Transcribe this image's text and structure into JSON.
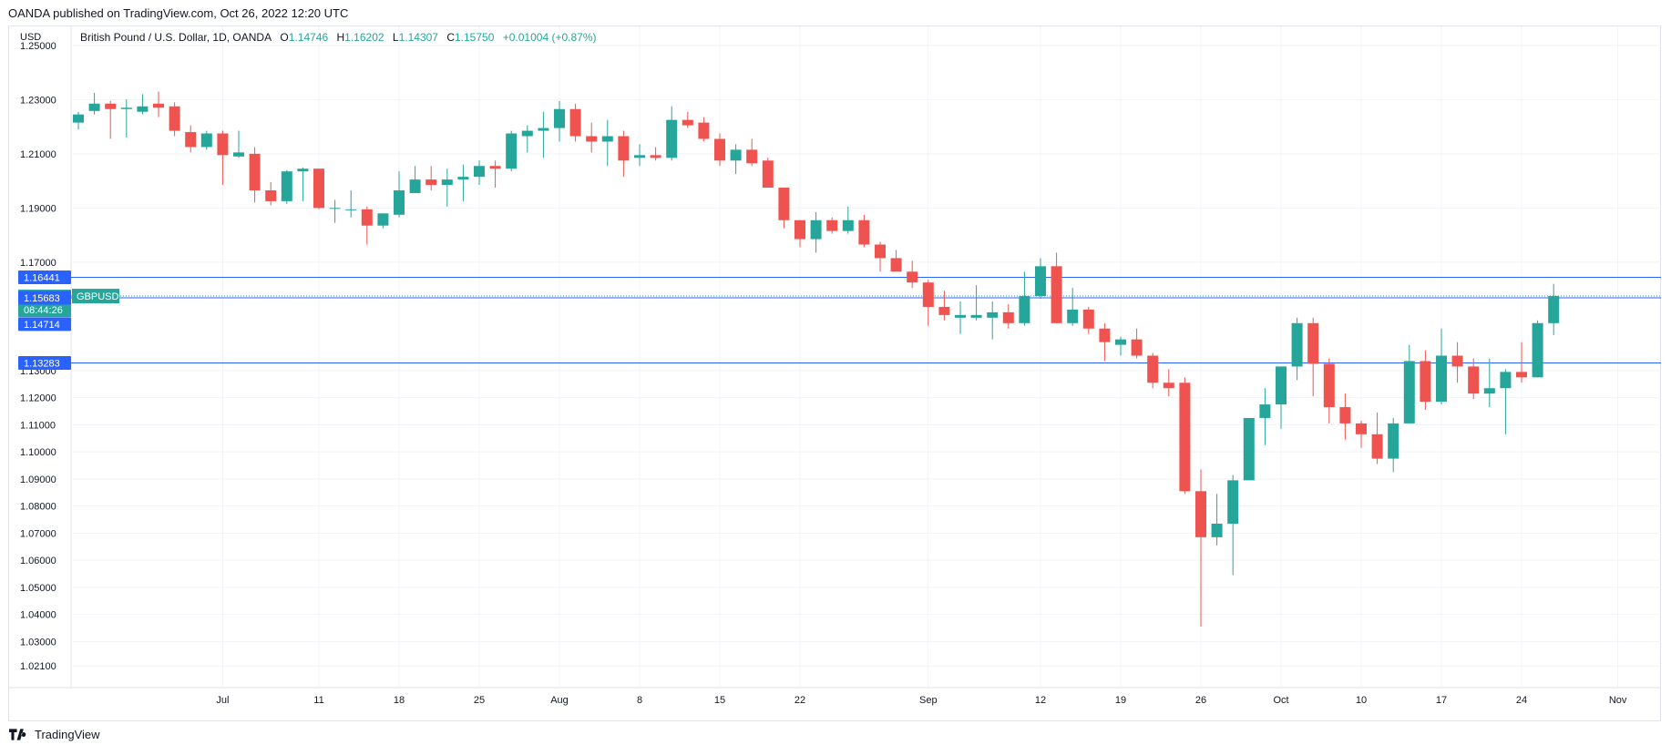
{
  "header": {
    "published": "OANDA published on TradingView.com, Oct 26, 2022 12:20 UTC"
  },
  "axis_currency": "USD",
  "legend": {
    "symbol_name": "British Pound / U.S. Dollar, 1D, OANDA",
    "o_label": "O",
    "o_value": "1.14746",
    "h_label": "H",
    "h_value": "1.16202",
    "l_label": "L",
    "l_value": "1.14307",
    "c_label": "C",
    "c_value": "1.15750",
    "change": "+0.01004 (+0.87%)"
  },
  "footer": {
    "brand": "TradingView"
  },
  "colors": {
    "up": "#26a69a",
    "down": "#ef5350",
    "hline": "#2962ff",
    "grid": "#f0f3fa"
  },
  "chart_data": {
    "type": "candlestick",
    "symbol": "GBPUSD",
    "ylim": [
      1.013,
      1.257
    ],
    "y_ticks": [
      1.25,
      1.23,
      1.21,
      1.19,
      1.17,
      1.13,
      1.12,
      1.11,
      1.1,
      1.09,
      1.08,
      1.07,
      1.06,
      1.05,
      1.04,
      1.03,
      1.021
    ],
    "y_tick_labels": [
      "1.25000",
      "1.23000",
      "1.21000",
      "1.19000",
      "1.17000",
      "1.13000",
      "1.12000",
      "1.11000",
      "1.10000",
      "1.09000",
      "1.08000",
      "1.07000",
      "1.06000",
      "1.05000",
      "1.04000",
      "1.03000",
      "1.02100"
    ],
    "x_tick_labels": [
      {
        "label": "Jul",
        "idx": 9
      },
      {
        "label": "11",
        "idx": 15
      },
      {
        "label": "18",
        "idx": 20
      },
      {
        "label": "25",
        "idx": 25
      },
      {
        "label": "Aug",
        "idx": 30
      },
      {
        "label": "8",
        "idx": 35
      },
      {
        "label": "15",
        "idx": 40
      },
      {
        "label": "22",
        "idx": 45
      },
      {
        "label": "Sep",
        "idx": 53
      },
      {
        "label": "12",
        "idx": 60
      },
      {
        "label": "19",
        "idx": 65
      },
      {
        "label": "26",
        "idx": 70
      },
      {
        "label": "Oct",
        "idx": 75
      },
      {
        "label": "10",
        "idx": 80
      },
      {
        "label": "17",
        "idx": 85
      },
      {
        "label": "24",
        "idx": 90
      },
      {
        "label": "Nov",
        "idx": 96
      }
    ],
    "h_lines": [
      {
        "value": 1.16441,
        "label": "1.16441"
      },
      {
        "value": 1.15683,
        "label": "1.15683"
      },
      {
        "value": 1.13283,
        "label": "1.13283"
      }
    ],
    "price_label": {
      "value": 1.1575,
      "label": "1.15750",
      "countdown": "08:44:26",
      "symbol": "GBPUSD"
    },
    "extra_label": {
      "value": 1.14714,
      "label": "1.14714"
    },
    "candles": [
      {
        "i": 0,
        "o": 1.2215,
        "h": 1.2255,
        "l": 1.219,
        "c": 1.2245
      },
      {
        "i": 1,
        "o": 1.2258,
        "h": 1.2325,
        "l": 1.2245,
        "c": 1.2285
      },
      {
        "i": 2,
        "o": 1.2285,
        "h": 1.2295,
        "l": 1.2155,
        "c": 1.2265
      },
      {
        "i": 3,
        "o": 1.2265,
        "h": 1.23,
        "l": 1.216,
        "c": 1.227
      },
      {
        "i": 4,
        "o": 1.2255,
        "h": 1.232,
        "l": 1.2245,
        "c": 1.2275
      },
      {
        "i": 5,
        "o": 1.2285,
        "h": 1.233,
        "l": 1.2235,
        "c": 1.227
      },
      {
        "i": 6,
        "o": 1.2275,
        "h": 1.229,
        "l": 1.2165,
        "c": 1.2185
      },
      {
        "i": 7,
        "o": 1.218,
        "h": 1.2205,
        "l": 1.2105,
        "c": 1.2125
      },
      {
        "i": 8,
        "o": 1.2125,
        "h": 1.2185,
        "l": 1.2115,
        "c": 1.2175
      },
      {
        "i": 9,
        "o": 1.2175,
        "h": 1.2185,
        "l": 1.1985,
        "c": 1.2095
      },
      {
        "i": 10,
        "o": 1.209,
        "h": 1.2185,
        "l": 1.2085,
        "c": 1.2105
      },
      {
        "i": 11,
        "o": 1.21,
        "h": 1.2125,
        "l": 1.192,
        "c": 1.1965
      },
      {
        "i": 12,
        "o": 1.1965,
        "h": 1.1995,
        "l": 1.191,
        "c": 1.1925
      },
      {
        "i": 13,
        "o": 1.1925,
        "h": 1.204,
        "l": 1.1915,
        "c": 1.2035
      },
      {
        "i": 14,
        "o": 1.2035,
        "h": 1.205,
        "l": 1.1925,
        "c": 1.2045
      },
      {
        "i": 15,
        "o": 1.2045,
        "h": 1.2045,
        "l": 1.1895,
        "c": 1.19
      },
      {
        "i": 16,
        "o": 1.19,
        "h": 1.193,
        "l": 1.1845,
        "c": 1.19
      },
      {
        "i": 17,
        "o": 1.1895,
        "h": 1.1965,
        "l": 1.1865,
        "c": 1.1895
      },
      {
        "i": 18,
        "o": 1.1895,
        "h": 1.1905,
        "l": 1.1765,
        "c": 1.1835
      },
      {
        "i": 19,
        "o": 1.1835,
        "h": 1.188,
        "l": 1.1825,
        "c": 1.188
      },
      {
        "i": 20,
        "o": 1.1875,
        "h": 1.2035,
        "l": 1.1865,
        "c": 1.1965
      },
      {
        "i": 21,
        "o": 1.1955,
        "h": 1.2055,
        "l": 1.1955,
        "c": 1.2005
      },
      {
        "i": 22,
        "o": 1.2005,
        "h": 1.2055,
        "l": 1.1965,
        "c": 1.1985
      },
      {
        "i": 23,
        "o": 1.1985,
        "h": 1.2045,
        "l": 1.1905,
        "c": 1.2005
      },
      {
        "i": 24,
        "o": 1.2005,
        "h": 1.206,
        "l": 1.1925,
        "c": 1.2015
      },
      {
        "i": 25,
        "o": 1.2015,
        "h": 1.2075,
        "l": 1.1985,
        "c": 1.2055
      },
      {
        "i": 26,
        "o": 1.2055,
        "h": 1.2075,
        "l": 1.1975,
        "c": 1.2045
      },
      {
        "i": 27,
        "o": 1.2045,
        "h": 1.2185,
        "l": 1.2035,
        "c": 1.2175
      },
      {
        "i": 28,
        "o": 1.2165,
        "h": 1.2205,
        "l": 1.2105,
        "c": 1.2185
      },
      {
        "i": 29,
        "o": 1.2185,
        "h": 1.2255,
        "l": 1.2085,
        "c": 1.2195
      },
      {
        "i": 30,
        "o": 1.2195,
        "h": 1.2295,
        "l": 1.2145,
        "c": 1.2265
      },
      {
        "i": 31,
        "o": 1.2265,
        "h": 1.2285,
        "l": 1.2145,
        "c": 1.2165
      },
      {
        "i": 32,
        "o": 1.2165,
        "h": 1.2215,
        "l": 1.2105,
        "c": 1.2145
      },
      {
        "i": 33,
        "o": 1.2145,
        "h": 1.2225,
        "l": 1.2055,
        "c": 1.2165
      },
      {
        "i": 34,
        "o": 1.2165,
        "h": 1.2185,
        "l": 1.2015,
        "c": 1.2075
      },
      {
        "i": 35,
        "o": 1.2085,
        "h": 1.2135,
        "l": 1.2055,
        "c": 1.2095
      },
      {
        "i": 36,
        "o": 1.2095,
        "h": 1.2125,
        "l": 1.2075,
        "c": 1.2085
      },
      {
        "i": 37,
        "o": 1.2085,
        "h": 1.2275,
        "l": 1.2075,
        "c": 1.2225
      },
      {
        "i": 38,
        "o": 1.2225,
        "h": 1.2255,
        "l": 1.2195,
        "c": 1.2205
      },
      {
        "i": 39,
        "o": 1.2215,
        "h": 1.2235,
        "l": 1.2145,
        "c": 1.2155
      },
      {
        "i": 40,
        "o": 1.2155,
        "h": 1.2175,
        "l": 1.2055,
        "c": 1.2075
      },
      {
        "i": 41,
        "o": 1.2075,
        "h": 1.2135,
        "l": 1.2025,
        "c": 1.2115
      },
      {
        "i": 42,
        "o": 1.2115,
        "h": 1.2155,
        "l": 1.2055,
        "c": 1.2065
      },
      {
        "i": 43,
        "o": 1.2075,
        "h": 1.2085,
        "l": 1.1975,
        "c": 1.1975
      },
      {
        "i": 44,
        "o": 1.1975,
        "h": 1.1975,
        "l": 1.1825,
        "c": 1.1855
      },
      {
        "i": 45,
        "o": 1.1855,
        "h": 1.1855,
        "l": 1.1755,
        "c": 1.1785
      },
      {
        "i": 46,
        "o": 1.1785,
        "h": 1.1885,
        "l": 1.1735,
        "c": 1.1855
      },
      {
        "i": 47,
        "o": 1.1855,
        "h": 1.1865,
        "l": 1.1805,
        "c": 1.1815
      },
      {
        "i": 48,
        "o": 1.1815,
        "h": 1.1905,
        "l": 1.1805,
        "c": 1.1855
      },
      {
        "i": 49,
        "o": 1.1855,
        "h": 1.1875,
        "l": 1.1755,
        "c": 1.1765
      },
      {
        "i": 50,
        "o": 1.1765,
        "h": 1.1775,
        "l": 1.1665,
        "c": 1.1715
      },
      {
        "i": 51,
        "o": 1.1715,
        "h": 1.1745,
        "l": 1.1665,
        "c": 1.1665
      },
      {
        "i": 52,
        "o": 1.1665,
        "h": 1.1705,
        "l": 1.1605,
        "c": 1.1625
      },
      {
        "i": 53,
        "o": 1.1625,
        "h": 1.1635,
        "l": 1.1465,
        "c": 1.1535
      },
      {
        "i": 54,
        "o": 1.1535,
        "h": 1.1595,
        "l": 1.1485,
        "c": 1.1505
      },
      {
        "i": 55,
        "o": 1.1495,
        "h": 1.1555,
        "l": 1.1435,
        "c": 1.1505
      },
      {
        "i": 56,
        "o": 1.1495,
        "h": 1.1615,
        "l": 1.1485,
        "c": 1.1505
      },
      {
        "i": 57,
        "o": 1.1495,
        "h": 1.1555,
        "l": 1.1415,
        "c": 1.1515
      },
      {
        "i": 58,
        "o": 1.1515,
        "h": 1.1545,
        "l": 1.1455,
        "c": 1.1475
      },
      {
        "i": 59,
        "o": 1.1475,
        "h": 1.1665,
        "l": 1.1465,
        "c": 1.1575
      },
      {
        "i": 60,
        "o": 1.1575,
        "h": 1.1715,
        "l": 1.1565,
        "c": 1.1685
      },
      {
        "i": 61,
        "o": 1.1685,
        "h": 1.1735,
        "l": 1.1475,
        "c": 1.1475
      },
      {
        "i": 62,
        "o": 1.1475,
        "h": 1.1605,
        "l": 1.1465,
        "c": 1.1525
      },
      {
        "i": 63,
        "o": 1.1525,
        "h": 1.1535,
        "l": 1.1435,
        "c": 1.1455
      },
      {
        "i": 64,
        "o": 1.1455,
        "h": 1.1475,
        "l": 1.1335,
        "c": 1.1405
      },
      {
        "i": 65,
        "o": 1.1395,
        "h": 1.1425,
        "l": 1.1355,
        "c": 1.1415
      },
      {
        "i": 66,
        "o": 1.1415,
        "h": 1.1455,
        "l": 1.1345,
        "c": 1.1355
      },
      {
        "i": 67,
        "o": 1.1355,
        "h": 1.1365,
        "l": 1.1235,
        "c": 1.1255
      },
      {
        "i": 68,
        "o": 1.1255,
        "h": 1.1305,
        "l": 1.1205,
        "c": 1.1235
      },
      {
        "i": 69,
        "o": 1.1255,
        "h": 1.1275,
        "l": 1.0845,
        "c": 1.0855
      },
      {
        "i": 70,
        "o": 1.0855,
        "h": 1.0935,
        "l": 1.0355,
        "c": 1.0685
      },
      {
        "i": 71,
        "o": 1.0685,
        "h": 1.0845,
        "l": 1.0655,
        "c": 1.0735
      },
      {
        "i": 72,
        "o": 1.0735,
        "h": 1.0915,
        "l": 1.0545,
        "c": 1.0895
      },
      {
        "i": 73,
        "o": 1.0895,
        "h": 1.1125,
        "l": 1.0895,
        "c": 1.1125
      },
      {
        "i": 74,
        "o": 1.1125,
        "h": 1.1235,
        "l": 1.1025,
        "c": 1.1175
      },
      {
        "i": 75,
        "o": 1.1175,
        "h": 1.1315,
        "l": 1.1085,
        "c": 1.1315
      },
      {
        "i": 76,
        "o": 1.1315,
        "h": 1.1495,
        "l": 1.1265,
        "c": 1.1475
      },
      {
        "i": 77,
        "o": 1.1475,
        "h": 1.1495,
        "l": 1.1205,
        "c": 1.1325
      },
      {
        "i": 78,
        "o": 1.1325,
        "h": 1.1345,
        "l": 1.1105,
        "c": 1.1165
      },
      {
        "i": 79,
        "o": 1.1165,
        "h": 1.1215,
        "l": 1.1045,
        "c": 1.1105
      },
      {
        "i": 80,
        "o": 1.1105,
        "h": 1.1115,
        "l": 1.1015,
        "c": 1.1065
      },
      {
        "i": 81,
        "o": 1.1065,
        "h": 1.1145,
        "l": 1.0955,
        "c": 1.0975
      },
      {
        "i": 82,
        "o": 1.0975,
        "h": 1.1125,
        "l": 1.0925,
        "c": 1.1105
      },
      {
        "i": 83,
        "o": 1.1105,
        "h": 1.1395,
        "l": 1.1105,
        "c": 1.1335
      },
      {
        "i": 84,
        "o": 1.1335,
        "h": 1.1375,
        "l": 1.1155,
        "c": 1.1185
      },
      {
        "i": 85,
        "o": 1.1185,
        "h": 1.1455,
        "l": 1.1175,
        "c": 1.1355
      },
      {
        "i": 86,
        "o": 1.1355,
        "h": 1.1405,
        "l": 1.1255,
        "c": 1.1315
      },
      {
        "i": 87,
        "o": 1.1315,
        "h": 1.1345,
        "l": 1.1195,
        "c": 1.1215
      },
      {
        "i": 88,
        "o": 1.1215,
        "h": 1.1345,
        "l": 1.1165,
        "c": 1.1235
      },
      {
        "i": 89,
        "o": 1.1235,
        "h": 1.1305,
        "l": 1.1065,
        "c": 1.1295
      },
      {
        "i": 90,
        "o": 1.1295,
        "h": 1.1405,
        "l": 1.1255,
        "c": 1.1275
      },
      {
        "i": 91,
        "o": 1.1275,
        "h": 1.1485,
        "l": 1.1275,
        "c": 1.1475
      },
      {
        "i": 92,
        "o": 1.1475,
        "h": 1.162,
        "l": 1.1431,
        "c": 1.1575
      }
    ]
  }
}
